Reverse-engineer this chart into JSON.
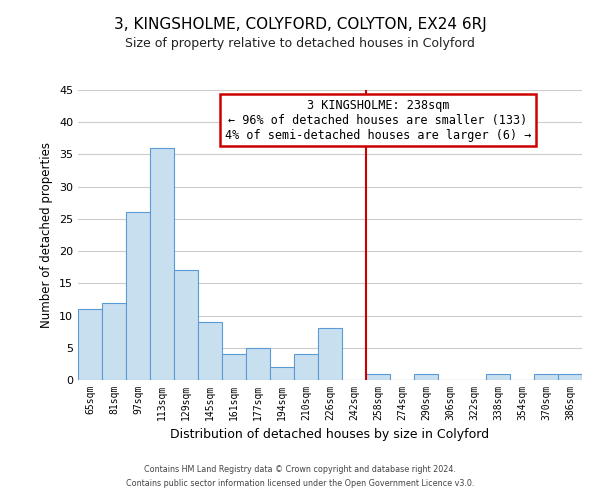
{
  "title": "3, KINGSHOLME, COLYFORD, COLYTON, EX24 6RJ",
  "subtitle": "Size of property relative to detached houses in Colyford",
  "xlabel": "Distribution of detached houses by size in Colyford",
  "ylabel": "Number of detached properties",
  "bins": [
    "65sqm",
    "81sqm",
    "97sqm",
    "113sqm",
    "129sqm",
    "145sqm",
    "161sqm",
    "177sqm",
    "194sqm",
    "210sqm",
    "226sqm",
    "242sqm",
    "258sqm",
    "274sqm",
    "290sqm",
    "306sqm",
    "322sqm",
    "338sqm",
    "354sqm",
    "370sqm",
    "386sqm"
  ],
  "counts": [
    11,
    12,
    26,
    36,
    17,
    9,
    4,
    5,
    2,
    4,
    8,
    0,
    1,
    0,
    1,
    0,
    0,
    1,
    0,
    1,
    1
  ],
  "bar_color": "#c8dff0",
  "bar_edge_color": "#5b9bd5",
  "vline_color": "#cc0000",
  "ylim": [
    0,
    45
  ],
  "yticks": [
    0,
    5,
    10,
    15,
    20,
    25,
    30,
    35,
    40,
    45
  ],
  "annotation_title": "3 KINGSHOLME: 238sqm",
  "annotation_line1": "← 96% of detached houses are smaller (133)",
  "annotation_line2": "4% of semi-detached houses are larger (6) →",
  "annotation_box_color": "#ffffff",
  "annotation_box_edge": "#cc0000",
  "footer1": "Contains HM Land Registry data © Crown copyright and database right 2024.",
  "footer2": "Contains public sector information licensed under the Open Government Licence v3.0.",
  "bg_color": "#ffffff",
  "grid_color": "#cccccc"
}
